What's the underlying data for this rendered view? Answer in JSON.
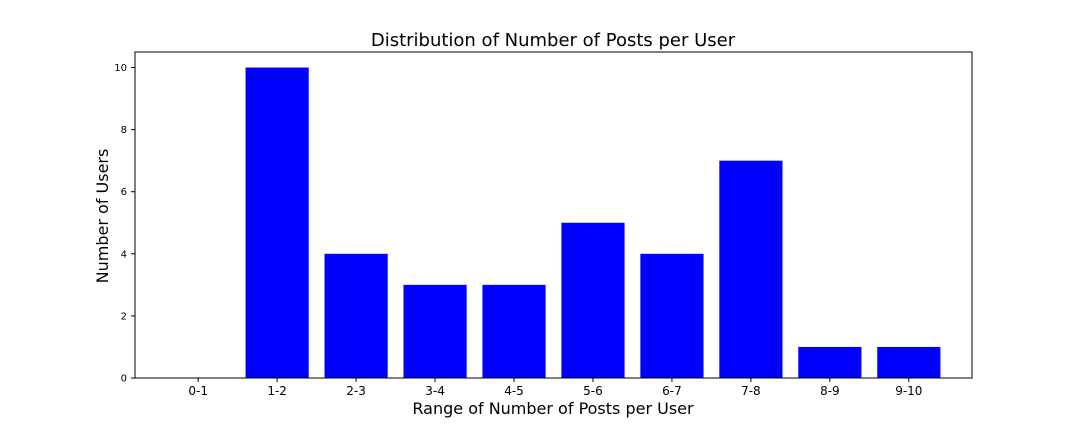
{
  "colors": {
    "bar": "#0000ff",
    "axes": "#000000",
    "background": "#ffffff"
  },
  "chart_data": {
    "type": "bar",
    "title": "Distribution of Number of Posts per User",
    "xlabel": "Range of Number of Posts per User",
    "ylabel": "Number of Users",
    "categories": [
      "0-1",
      "1-2",
      "2-3",
      "3-4",
      "4-5",
      "5-6",
      "6-7",
      "7-8",
      "8-9",
      "9-10"
    ],
    "values": [
      0,
      10,
      4,
      3,
      3,
      5,
      4,
      7,
      1,
      1
    ],
    "ylim": [
      0,
      10.5
    ],
    "yticks": [
      0,
      2,
      4,
      6,
      8,
      10
    ],
    "grid": false,
    "legend": "none"
  }
}
